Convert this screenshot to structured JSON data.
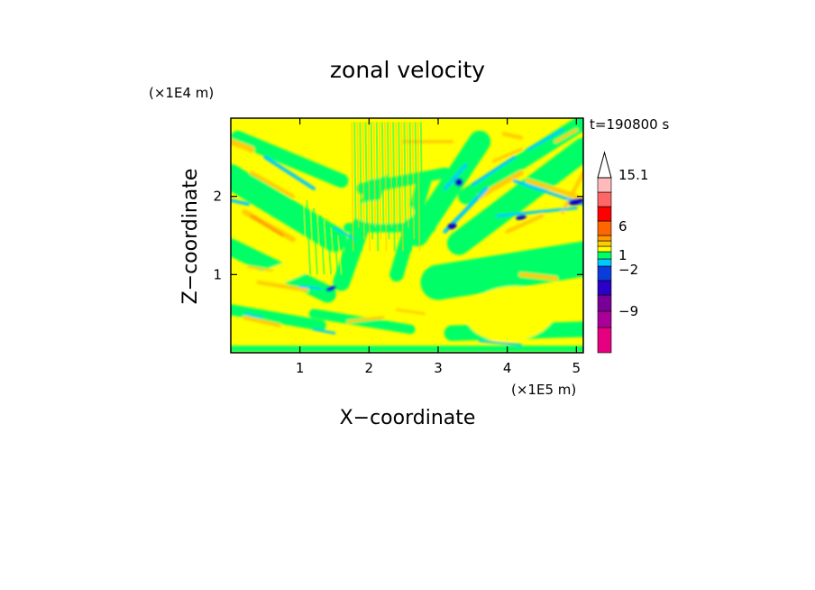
{
  "chart_data": {
    "type": "heatmap",
    "title": "zonal velocity",
    "xlabel": "X−coordinate",
    "ylabel": "Z−coordinate",
    "x_unit": "(×1E5 m)",
    "y_unit": "(×1E4 m)",
    "time_label": "t=190800 s",
    "xlim": [
      0,
      5.1
    ],
    "ylim": [
      0,
      3
    ],
    "x_ticks": [
      1,
      2,
      3,
      4,
      5
    ],
    "y_ticks": [
      1,
      2
    ],
    "x_tick_labels": [
      "1",
      "2",
      "3",
      "4",
      "5"
    ],
    "y_tick_labels": [
      "1",
      "2"
    ],
    "colorbar": {
      "levels_low_to_high": [
        "#e6007f",
        "#aa0099",
        "#780099",
        "#2a00c8",
        "#0a3cdc",
        "#00c8ff",
        "#00ff66",
        "#ffff00",
        "#ffcc00",
        "#ff9900",
        "#ff6600",
        "#ff0000",
        "#ff6666",
        "#ffbbbb"
      ],
      "labels": [
        "15.1",
        "6",
        "1",
        "−2",
        "−9"
      ]
    },
    "field_colors": {
      "very_negative": "#0a00c8",
      "negative": "#00c8ff",
      "near_zero": "#00ff66",
      "small_positive": "#ffff00",
      "positive": "#ffcc00",
      "strong_positive": "#ff9900"
    }
  }
}
